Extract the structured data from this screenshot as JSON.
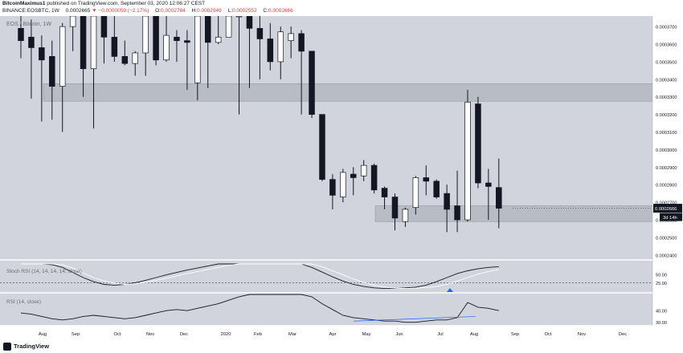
{
  "header": {
    "author": "BitcoinMaximus1",
    "published_text": "published on TradingView.com, September 03, 2020 12:06:27 CEST",
    "symbol": "BINANCE:EOSBTC, 1W",
    "last": "0.0002665",
    "change": "−0.0000059 (−2.17%)",
    "o_label": "O:",
    "o_value": "0.0002784",
    "h_label": "H:",
    "h_value": "0.0002949",
    "l_label": "L:",
    "l_value": "0.0002552",
    "c_label": "C:",
    "c_value": "0.0002666"
  },
  "footer": {
    "brand": "TradingView"
  },
  "colors": {
    "background": "#d1d4dc",
    "up": "#ffffff",
    "down": "#131722",
    "zone": "#b2b5be",
    "rsi_line": "#131722"
  },
  "chart_data": [
    {
      "type": "candlestick",
      "title": "EOS / Bitcoin, 1W",
      "x_tick_labels": [
        "Aug",
        "Sep",
        "Oct",
        "Nov",
        "Dec",
        "2020",
        "Feb",
        "Mar",
        "Apr",
        "May",
        "Jun",
        "Jul",
        "Aug",
        "Sep",
        "Oct",
        "Nov",
        "Dec"
      ],
      "y_tick_labels": [
        "0.0003700",
        "0.0003600",
        "0.0003500",
        "0.0003400",
        "0.0003300",
        "0.0003200",
        "0.0003100",
        "0.0003000",
        "0.0002900",
        "0.0002800",
        "0.0002700",
        "0.0002600",
        "0.0002500",
        "0.0002400"
      ],
      "ylim": [
        0.000239,
        0.000376
      ],
      "last_price_label": "0.0002666",
      "countdown_label": "3d 14h",
      "zones": [
        {
          "low": 0.0003275,
          "high": 0.0003375
        },
        {
          "low": 0.000259,
          "high": 0.000268
        }
      ],
      "candles": [
        {
          "o": 0.000369,
          "h": 0.000376,
          "l": 0.000352,
          "c": 0.000362
        },
        {
          "o": 0.000364,
          "h": 0.000374,
          "l": 0.000329,
          "c": 0.000358
        },
        {
          "o": 0.000358,
          "h": 0.000365,
          "l": 0.000316,
          "c": 0.000351
        },
        {
          "o": 0.000353,
          "h": 0.000362,
          "l": 0.000317,
          "c": 0.000336
        },
        {
          "o": 0.000336,
          "h": 0.000372,
          "l": 0.00031,
          "c": 0.00037
        },
        {
          "o": 0.00037,
          "h": 0.000376,
          "l": 0.000356,
          "c": 0.000376
        },
        {
          "o": 0.000376,
          "h": 0.000376,
          "l": 0.00033,
          "c": 0.000346
        },
        {
          "o": 0.000346,
          "h": 0.000376,
          "l": 0.000312,
          "c": 0.000376
        },
        {
          "o": 0.000376,
          "h": 0.000376,
          "l": 0.000349,
          "c": 0.000364
        },
        {
          "o": 0.000364,
          "h": 0.000376,
          "l": 0.00035,
          "c": 0.000353
        },
        {
          "o": 0.000353,
          "h": 0.000362,
          "l": 0.000348,
          "c": 0.000349
        },
        {
          "o": 0.000349,
          "h": 0.000356,
          "l": 0.000342,
          "c": 0.000355
        },
        {
          "o": 0.000355,
          "h": 0.000376,
          "l": 0.000342,
          "c": 0.000376
        },
        {
          "o": 0.000376,
          "h": 0.000376,
          "l": 0.000348,
          "c": 0.000351
        },
        {
          "o": 0.000351,
          "h": 0.000376,
          "l": 0.00035,
          "c": 0.000365
        },
        {
          "o": 0.000364,
          "h": 0.000368,
          "l": 0.00035,
          "c": 0.000362
        },
        {
          "o": 0.000362,
          "h": 0.000368,
          "l": 0.000334,
          "c": 0.000361
        },
        {
          "o": 0.000338,
          "h": 0.000376,
          "l": 0.000328,
          "c": 0.000376
        },
        {
          "o": 0.000376,
          "h": 0.000376,
          "l": 0.000335,
          "c": 0.000361
        },
        {
          "o": 0.000361,
          "h": 0.000376,
          "l": 0.00036,
          "c": 0.000364
        },
        {
          "o": 0.000364,
          "h": 0.000376,
          "l": 0.000364,
          "c": 0.000376
        },
        {
          "o": 0.000376,
          "h": 0.000376,
          "l": 0.00032,
          "c": 0.000376
        },
        {
          "o": 0.000376,
          "h": 0.000376,
          "l": 0.000335,
          "c": 0.000369
        },
        {
          "o": 0.000369,
          "h": 0.000376,
          "l": 0.00034,
          "c": 0.000363
        },
        {
          "o": 0.000363,
          "h": 0.000372,
          "l": 0.000345,
          "c": 0.00035
        },
        {
          "o": 0.00035,
          "h": 0.00037,
          "l": 0.00034,
          "c": 0.000367
        },
        {
          "o": 0.000362,
          "h": 0.00037,
          "l": 0.000352,
          "c": 0.000366
        },
        {
          "o": 0.000366,
          "h": 0.000368,
          "l": 0.00032,
          "c": 0.000356
        },
        {
          "o": 0.000356,
          "h": 0.000356,
          "l": 0.000318,
          "c": 0.00032
        },
        {
          "o": 0.00032,
          "h": 0.00032,
          "l": 0.000282,
          "c": 0.000283
        },
        {
          "o": 0.000283,
          "h": 0.000286,
          "l": 0.000266,
          "c": 0.000274
        },
        {
          "o": 0.000273,
          "h": 0.000289,
          "l": 0.00027,
          "c": 0.000287
        },
        {
          "o": 0.000286,
          "h": 0.00029,
          "l": 0.000274,
          "c": 0.000284
        },
        {
          "o": 0.000285,
          "h": 0.000294,
          "l": 0.000282,
          "c": 0.000291
        },
        {
          "o": 0.000291,
          "h": 0.000292,
          "l": 0.000275,
          "c": 0.000277
        },
        {
          "o": 0.000278,
          "h": 0.000279,
          "l": 0.000266,
          "c": 0.000273
        },
        {
          "o": 0.000273,
          "h": 0.000275,
          "l": 0.000254,
          "c": 0.000261
        },
        {
          "o": 0.000259,
          "h": 0.000267,
          "l": 0.000256,
          "c": 0.000266
        },
        {
          "o": 0.000267,
          "h": 0.000285,
          "l": 0.000263,
          "c": 0.000284
        },
        {
          "o": 0.000284,
          "h": 0.000291,
          "l": 0.000274,
          "c": 0.000282
        },
        {
          "o": 0.000282,
          "h": 0.000283,
          "l": 0.000272,
          "c": 0.000273
        },
        {
          "o": 0.000275,
          "h": 0.00028,
          "l": 0.000253,
          "c": 0.000266
        },
        {
          "o": 0.000268,
          "h": 0.000288,
          "l": 0.000253,
          "c": 0.00026
        },
        {
          "o": 0.00026,
          "h": 0.000334,
          "l": 0.000259,
          "c": 0.000327
        },
        {
          "o": 0.000326,
          "h": 0.00033,
          "l": 0.000278,
          "c": 0.000281
        },
        {
          "o": 0.000281,
          "h": 0.000289,
          "l": 0.00026,
          "c": 0.000279
        },
        {
          "o": 0.0002784,
          "h": 0.0002949,
          "l": 0.0002552,
          "c": 0.0002666
        }
      ]
    },
    {
      "type": "line",
      "title": "Stoch RSI (14, 14, 14, 14, close)",
      "y_tick_labels": [
        "50.00",
        "25.00"
      ],
      "ylim": [
        0,
        80
      ],
      "series": [
        {
          "values": [
            80,
            80,
            80,
            78,
            70,
            55,
            40,
            28,
            20,
            18,
            20,
            25,
            32,
            40,
            48,
            55,
            62,
            68,
            74,
            80,
            80,
            80,
            80,
            80,
            80,
            80,
            80,
            80,
            70,
            56,
            42,
            30,
            20,
            14,
            10,
            8,
            8,
            10,
            12,
            18,
            28,
            40,
            52,
            60,
            66,
            70,
            72
          ]
        },
        {
          "values": [
            80,
            80,
            80,
            80,
            78,
            68,
            54,
            40,
            30,
            24,
            20,
            22,
            26,
            32,
            38,
            45,
            52,
            58,
            64,
            70,
            76,
            80,
            80,
            80,
            80,
            80,
            80,
            80,
            80,
            72,
            60,
            48,
            36,
            26,
            18,
            12,
            9,
            8,
            9,
            11,
            14,
            20,
            30,
            40,
            50,
            58,
            64
          ]
        }
      ],
      "reference_level": 25
    },
    {
      "type": "line",
      "title": "RSI (14, close)",
      "y_tick_labels": [
        "40.00",
        "30.00"
      ],
      "ylim": [
        27,
        54
      ],
      "series": [
        {
          "values": [
            38,
            37,
            35,
            33,
            32,
            33,
            35,
            36,
            35,
            34,
            33,
            34,
            36,
            38,
            40,
            41,
            40,
            42,
            44,
            46,
            49,
            52,
            54,
            54,
            54,
            54,
            54,
            54,
            52,
            46,
            41,
            36,
            34,
            33,
            32,
            31,
            31,
            30,
            30,
            31,
            32,
            32,
            34,
            47,
            43,
            42,
            40
          ]
        }
      ]
    }
  ]
}
